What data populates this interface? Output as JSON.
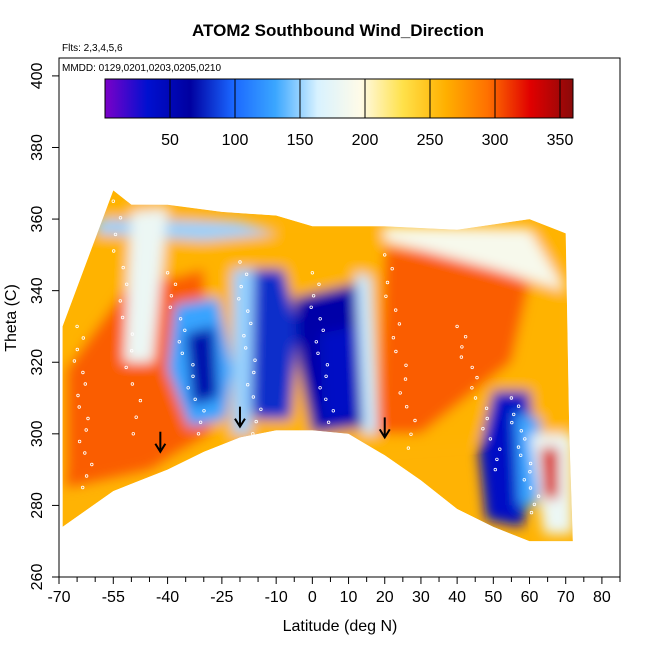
{
  "chart_data": {
    "type": "heatmap",
    "title": "ATOM2 Southbound Wind_Direction",
    "notes": [
      "Flts: 2,3,4,5,6",
      "MMDD: 0129,0201,0203,0205,0210"
    ],
    "xlabel": "Latitude (deg N)",
    "ylabel": "Theta (C)",
    "xlim": [
      -70,
      85
    ],
    "ylim": [
      260,
      405
    ],
    "x_ticks": [
      -70,
      -55,
      -40,
      -25,
      -10,
      0,
      10,
      20,
      30,
      40,
      50,
      60,
      70,
      80
    ],
    "x_minor_ticks": [
      -65,
      -60,
      -50,
      -45,
      -35,
      -30,
      -20,
      -15,
      -5,
      5,
      15,
      25,
      35,
      45,
      55,
      65,
      75,
      85
    ],
    "y_ticks": [
      260,
      280,
      300,
      320,
      340,
      360,
      380,
      400
    ],
    "grid": false,
    "legend": "colorbar, top inside plot",
    "colorbar": {
      "range": [
        0,
        360
      ],
      "tick_values": [
        50,
        100,
        150,
        200,
        250,
        300,
        350
      ],
      "tick_labels": [
        "50",
        "100",
        "150",
        "200",
        "250",
        "300",
        "350"
      ],
      "colors": [
        "#7b00c8",
        "#0010d0",
        "#0000a0",
        "#1a66ff",
        "#3aa6ff",
        "#d8f2ff",
        "#fffbe8",
        "#ffe14a",
        "#ffb000",
        "#ff7000",
        "#e00000",
        "#8a0a0a"
      ]
    },
    "domain_top": [
      [
        -69,
        330
      ],
      [
        -55,
        368
      ],
      [
        -50,
        364
      ],
      [
        -40,
        364
      ],
      [
        -25,
        362
      ],
      [
        -10,
        361
      ],
      [
        0,
        358
      ],
      [
        20,
        358
      ],
      [
        40,
        357
      ],
      [
        60,
        360
      ],
      [
        70,
        356
      ],
      [
        71,
        300
      ],
      [
        72,
        270
      ]
    ],
    "domain_bottom": [
      [
        -69,
        274
      ],
      [
        -55,
        284
      ],
      [
        -40,
        290
      ],
      [
        -30,
        295
      ],
      [
        -20,
        299
      ],
      [
        -10,
        301
      ],
      [
        0,
        301
      ],
      [
        10,
        300
      ],
      [
        20,
        294
      ],
      [
        30,
        287
      ],
      [
        40,
        279
      ],
      [
        50,
        274
      ],
      [
        60,
        270
      ],
      [
        72,
        270
      ]
    ],
    "regions": [
      {
        "direction": 260,
        "polygon": [
          [
            -70,
            330
          ],
          [
            -55,
            368
          ],
          [
            -30,
            362
          ],
          [
            -10,
            358
          ],
          [
            30,
            358
          ],
          [
            70,
            358
          ],
          [
            70,
            300
          ],
          [
            -70,
            290
          ]
        ]
      },
      {
        "direction": 300,
        "polygon": [
          [
            -68,
            318
          ],
          [
            -52,
            340
          ],
          [
            -30,
            346
          ],
          [
            -28,
            300
          ],
          [
            -45,
            290
          ],
          [
            -68,
            285
          ]
        ]
      },
      {
        "direction": 300,
        "polygon": [
          [
            20,
            352
          ],
          [
            45,
            350
          ],
          [
            60,
            342
          ],
          [
            55,
            320
          ],
          [
            30,
            300
          ],
          [
            18,
            300
          ]
        ]
      },
      {
        "direction": 150,
        "polygon": [
          [
            -60,
            360
          ],
          [
            -20,
            359
          ],
          [
            -10,
            356
          ],
          [
            -30,
            354
          ],
          [
            -60,
            356
          ]
        ]
      },
      {
        "direction": 130,
        "polygon": [
          [
            -38,
            336
          ],
          [
            -26,
            338
          ],
          [
            -22,
            318
          ],
          [
            -24,
            304
          ],
          [
            -34,
            302
          ],
          [
            -40,
            318
          ]
        ]
      },
      {
        "direction": 70,
        "polygon": [
          [
            -35,
            328
          ],
          [
            -27,
            330
          ],
          [
            -26,
            310
          ],
          [
            -33,
            308
          ]
        ]
      },
      {
        "direction": 80,
        "polygon": [
          [
            -18,
            346
          ],
          [
            -8,
            346
          ],
          [
            -4,
            330
          ],
          [
            -6,
            304
          ],
          [
            -16,
            304
          ],
          [
            -20,
            322
          ]
        ]
      },
      {
        "direction": 60,
        "polygon": [
          [
            -5,
            338
          ],
          [
            12,
            342
          ],
          [
            16,
            320
          ],
          [
            14,
            302
          ],
          [
            0,
            300
          ],
          [
            -4,
            320
          ]
        ]
      },
      {
        "direction": 40,
        "polygon": [
          [
            2,
            328
          ],
          [
            12,
            330
          ],
          [
            12,
            305
          ],
          [
            3,
            303
          ]
        ]
      },
      {
        "direction": 150,
        "polygon": [
          [
            -22,
            346
          ],
          [
            -16,
            346
          ],
          [
            -17,
            300
          ],
          [
            -22,
            300
          ]
        ]
      },
      {
        "direction": 160,
        "polygon": [
          [
            12,
            345
          ],
          [
            16,
            344
          ],
          [
            18,
            300
          ],
          [
            14,
            300
          ]
        ]
      },
      {
        "direction": 190,
        "polygon": [
          [
            20,
            358
          ],
          [
            60,
            357
          ],
          [
            70,
            340
          ],
          [
            50,
            346
          ],
          [
            20,
            354
          ]
        ]
      },
      {
        "direction": 40,
        "polygon": [
          [
            50,
            312
          ],
          [
            60,
            312
          ],
          [
            62,
            290
          ],
          [
            58,
            274
          ],
          [
            48,
            276
          ],
          [
            46,
            295
          ]
        ]
      },
      {
        "direction": 130,
        "polygon": [
          [
            56,
            306
          ],
          [
            63,
            304
          ],
          [
            62,
            280
          ],
          [
            57,
            280
          ]
        ]
      },
      {
        "direction": 180,
        "polygon": [
          [
            60,
            300
          ],
          [
            72,
            300
          ],
          [
            72,
            272
          ],
          [
            64,
            272
          ]
        ]
      },
      {
        "direction": 330,
        "polygon": [
          [
            63,
            296
          ],
          [
            68,
            296
          ],
          [
            68,
            282
          ],
          [
            64,
            282
          ]
        ]
      },
      {
        "direction": 180,
        "polygon": [
          [
            -50,
            362
          ],
          [
            -40,
            363
          ],
          [
            -44,
            320
          ],
          [
            -52,
            320
          ]
        ]
      }
    ],
    "arrows": [
      [
        -42,
        295
      ],
      [
        -20,
        302
      ],
      [
        20,
        299
      ]
    ]
  }
}
